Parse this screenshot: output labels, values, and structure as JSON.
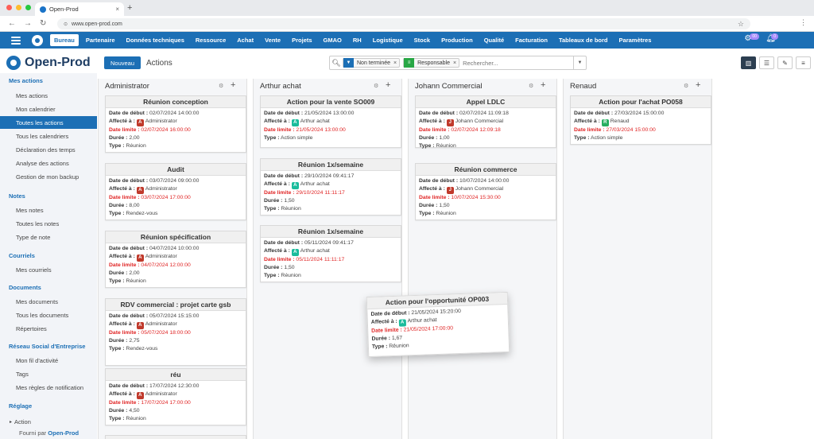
{
  "browser": {
    "tab_title": "Open-Prod",
    "url": "www.open-prod.com"
  },
  "nav": {
    "items": [
      "Bureau",
      "Partenaire",
      "Données techniques",
      "Ressource",
      "Achat",
      "Vente",
      "Projets",
      "GMAO",
      "RH",
      "Logistique",
      "Stock",
      "Production",
      "Qualité",
      "Facturation",
      "Tableaux de bord",
      "Paramètres"
    ],
    "active": "Bureau",
    "badge_activity": "00",
    "badge_notifications": "0"
  },
  "header": {
    "brand": "Open-Prod",
    "new_button": "Nouveau",
    "title": "Actions",
    "facets": [
      {
        "label": "Non terminée",
        "icon": "filter-icon",
        "color": "#1c6fb5"
      },
      {
        "label": "Responsable",
        "icon": "group-icon",
        "color": "#28a745"
      }
    ],
    "search_placeholder": "Rechercher..."
  },
  "sidebar": {
    "sections": [
      {
        "title": "Mes actions",
        "items": [
          "Mes actions",
          "Mon calendrier",
          "Toutes les actions",
          "Tous les calendriers",
          "Déclaration des temps",
          "Analyse des actions",
          "Gestion de mon backup"
        ]
      },
      {
        "title": "Notes",
        "items": [
          "Mes notes",
          "Toutes les notes",
          "Type de note"
        ]
      },
      {
        "title": "Courriels",
        "items": [
          "Mes courriels"
        ]
      },
      {
        "title": "Documents",
        "items": [
          "Mes documents",
          "Tous les documents",
          "Répertoires"
        ]
      },
      {
        "title": "Réseau Social d'Entreprise",
        "items": [
          "Mon fil d'activité",
          "Tags",
          "Mes règles de notification"
        ]
      },
      {
        "title": "Réglage",
        "items": [
          "Action"
        ]
      }
    ],
    "active_item": "Toutes les actions",
    "footer_prefix": "Fourni par",
    "footer_brand": "Open-Prod"
  },
  "labels": {
    "start": "Date de début :",
    "assigned": "Affecté à :",
    "deadline": "Date limite :",
    "duration": "Durée :",
    "type": "Type :"
  },
  "columns": [
    {
      "title": "Administrator",
      "cards": [
        {
          "title": "Réunion conception",
          "start": "02/07/2024 14:00:00",
          "initial": "A",
          "assignee": "Administrator",
          "avatar_color": "#c0392b",
          "deadline": "02/07/2024 16:00:00",
          "duration": "2,00",
          "type": "Réunion"
        },
        {
          "title": "Audit",
          "start": "03/07/2024 09:00:00",
          "initial": "A",
          "assignee": "Administrator",
          "avatar_color": "#c0392b",
          "deadline": "03/07/2024 17:00:00",
          "duration": "8,00",
          "type": "Rendez-vous"
        },
        {
          "title": "Réunion spécification",
          "start": "04/07/2024 10:00:00",
          "initial": "A",
          "assignee": "Administrator",
          "avatar_color": "#c0392b",
          "deadline": "04/07/2024 12:00:00",
          "duration": "2,00",
          "type": "Réunion"
        },
        {
          "title": "RDV commercial : projet carte gsb",
          "start": "05/07/2024 15:15:00",
          "initial": "A",
          "assignee": "Administrator",
          "avatar_color": "#c0392b",
          "deadline": "05/07/2024 18:00:00",
          "duration": "2,75",
          "type": "Rendez-vous"
        },
        {
          "title": "réu",
          "start": "17/07/2024 12:30:00",
          "initial": "A",
          "assignee": "Administrator",
          "avatar_color": "#c0392b",
          "deadline": "17/07/2024 17:00:00",
          "duration": "4,50",
          "type": "Réunion"
        },
        {
          "title": "Réunion",
          "start": "",
          "initial": "",
          "assignee": "",
          "avatar_color": "#c0392b",
          "deadline": "",
          "duration": "",
          "type": ""
        }
      ]
    },
    {
      "title": "Arthur achat",
      "cards": [
        {
          "title": "Action pour la vente SO009",
          "start": "21/05/2024 13:00:00",
          "initial": "A",
          "assignee": "Arthur achat",
          "avatar_color": "#1abc9c",
          "deadline": "21/05/2024 13:00:00",
          "duration": "",
          "type": "Action simple"
        },
        {
          "title": "Réunion 1x/semaine",
          "start": "29/10/2024 09:41:17",
          "initial": "A",
          "assignee": "Arthur achat",
          "avatar_color": "#1abc9c",
          "deadline": "29/10/2024 11:11:17",
          "duration": "1,50",
          "type": "Réunion"
        },
        {
          "title": "Réunion 1x/semaine",
          "start": "05/11/2024 09:41:17",
          "initial": "A",
          "assignee": "Arthur achat",
          "avatar_color": "#1abc9c",
          "deadline": "05/11/2024 11:11:17",
          "duration": "1,50",
          "type": "Réunion"
        }
      ]
    },
    {
      "title": "Johann Commercial",
      "cards": [
        {
          "title": "Appel LDLC",
          "start": "02/07/2024 11:09:18",
          "initial": "J",
          "assignee": "Johann Commercial",
          "avatar_color": "#c0392b",
          "deadline": "02/07/2024 12:09:18",
          "duration": "1,00",
          "type": "Réunion"
        },
        {
          "title": "Réunion commerce",
          "start": "10/07/2024 14:00:00",
          "initial": "J",
          "assignee": "Johann Commercial",
          "avatar_color": "#c0392b",
          "deadline": "10/07/2024 15:30:00",
          "duration": "1,50",
          "type": "Réunion"
        }
      ]
    },
    {
      "title": "Renaud",
      "cards": [
        {
          "title": "Action pour l'achat PO058",
          "start": "27/03/2024 15:00:00",
          "initial": "R",
          "assignee": "Renaud",
          "avatar_color": "#27ae60",
          "deadline": "27/03/2024 15:00:00",
          "duration": "",
          "type": "Action simple"
        }
      ]
    }
  ],
  "dragged_card": {
    "title": "Action pour l'opportunité OP003",
    "start": "21/05/2024 15:20:00",
    "initial": "A",
    "assignee": "Arthur achat",
    "avatar_color": "#1abc9c",
    "deadline": "21/05/2024 17:00:00",
    "duration": "1,67",
    "type": "Réunion"
  }
}
